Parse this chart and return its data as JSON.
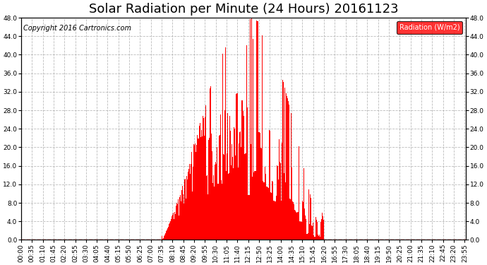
{
  "title": "Solar Radiation per Minute (24 Hours) 20161123",
  "copyright_text": "Copyright 2016 Cartronics.com",
  "bar_color": "#ff0000",
  "bg_color": "#ffffff",
  "grid_color": "#aaaaaa",
  "zero_line_color": "#ff0000",
  "legend_bg": "#ff0000",
  "legend_text": "Radiation (W/m2)",
  "ylim": [
    0.0,
    48.0
  ],
  "yticks": [
    0.0,
    4.0,
    8.0,
    12.0,
    16.0,
    20.0,
    24.0,
    28.0,
    32.0,
    36.0,
    40.0,
    44.0,
    48.0
  ],
  "title_fontsize": 13,
  "tick_fontsize": 6.5,
  "copyright_fontsize": 7,
  "n_minutes": 1440,
  "sunrise_min": 455,
  "sunset_min": 980,
  "peak_min": 745
}
